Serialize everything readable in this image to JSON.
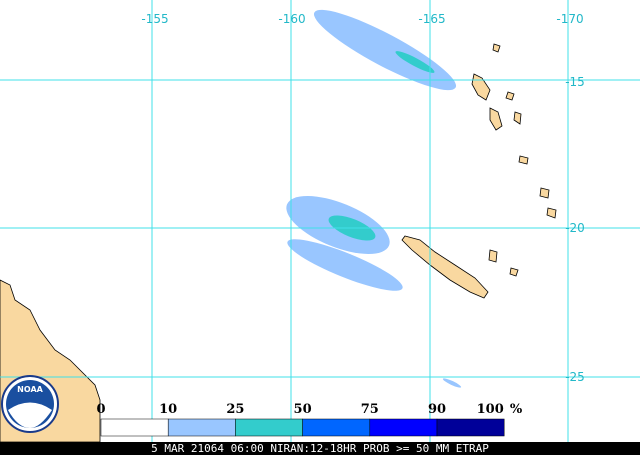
{
  "map": {
    "lon_labels": [
      "-155",
      "-160",
      "-165",
      "-170"
    ],
    "lat_labels": [
      "-15",
      "-20",
      "-25"
    ],
    "logo": "NOAA"
  },
  "legend": {
    "labels": [
      "0",
      "10",
      "25",
      "50",
      "75",
      "90",
      "100"
    ],
    "unit": "%",
    "colors": [
      "#ffffff",
      "#99c6ff",
      "#33cccc",
      "#0066ff",
      "#0000ff",
      "#000099"
    ]
  },
  "caption": "5 MAR 21064 06:00 NIRAN:12-18HR PROB >= 50 MM ETRAP"
}
